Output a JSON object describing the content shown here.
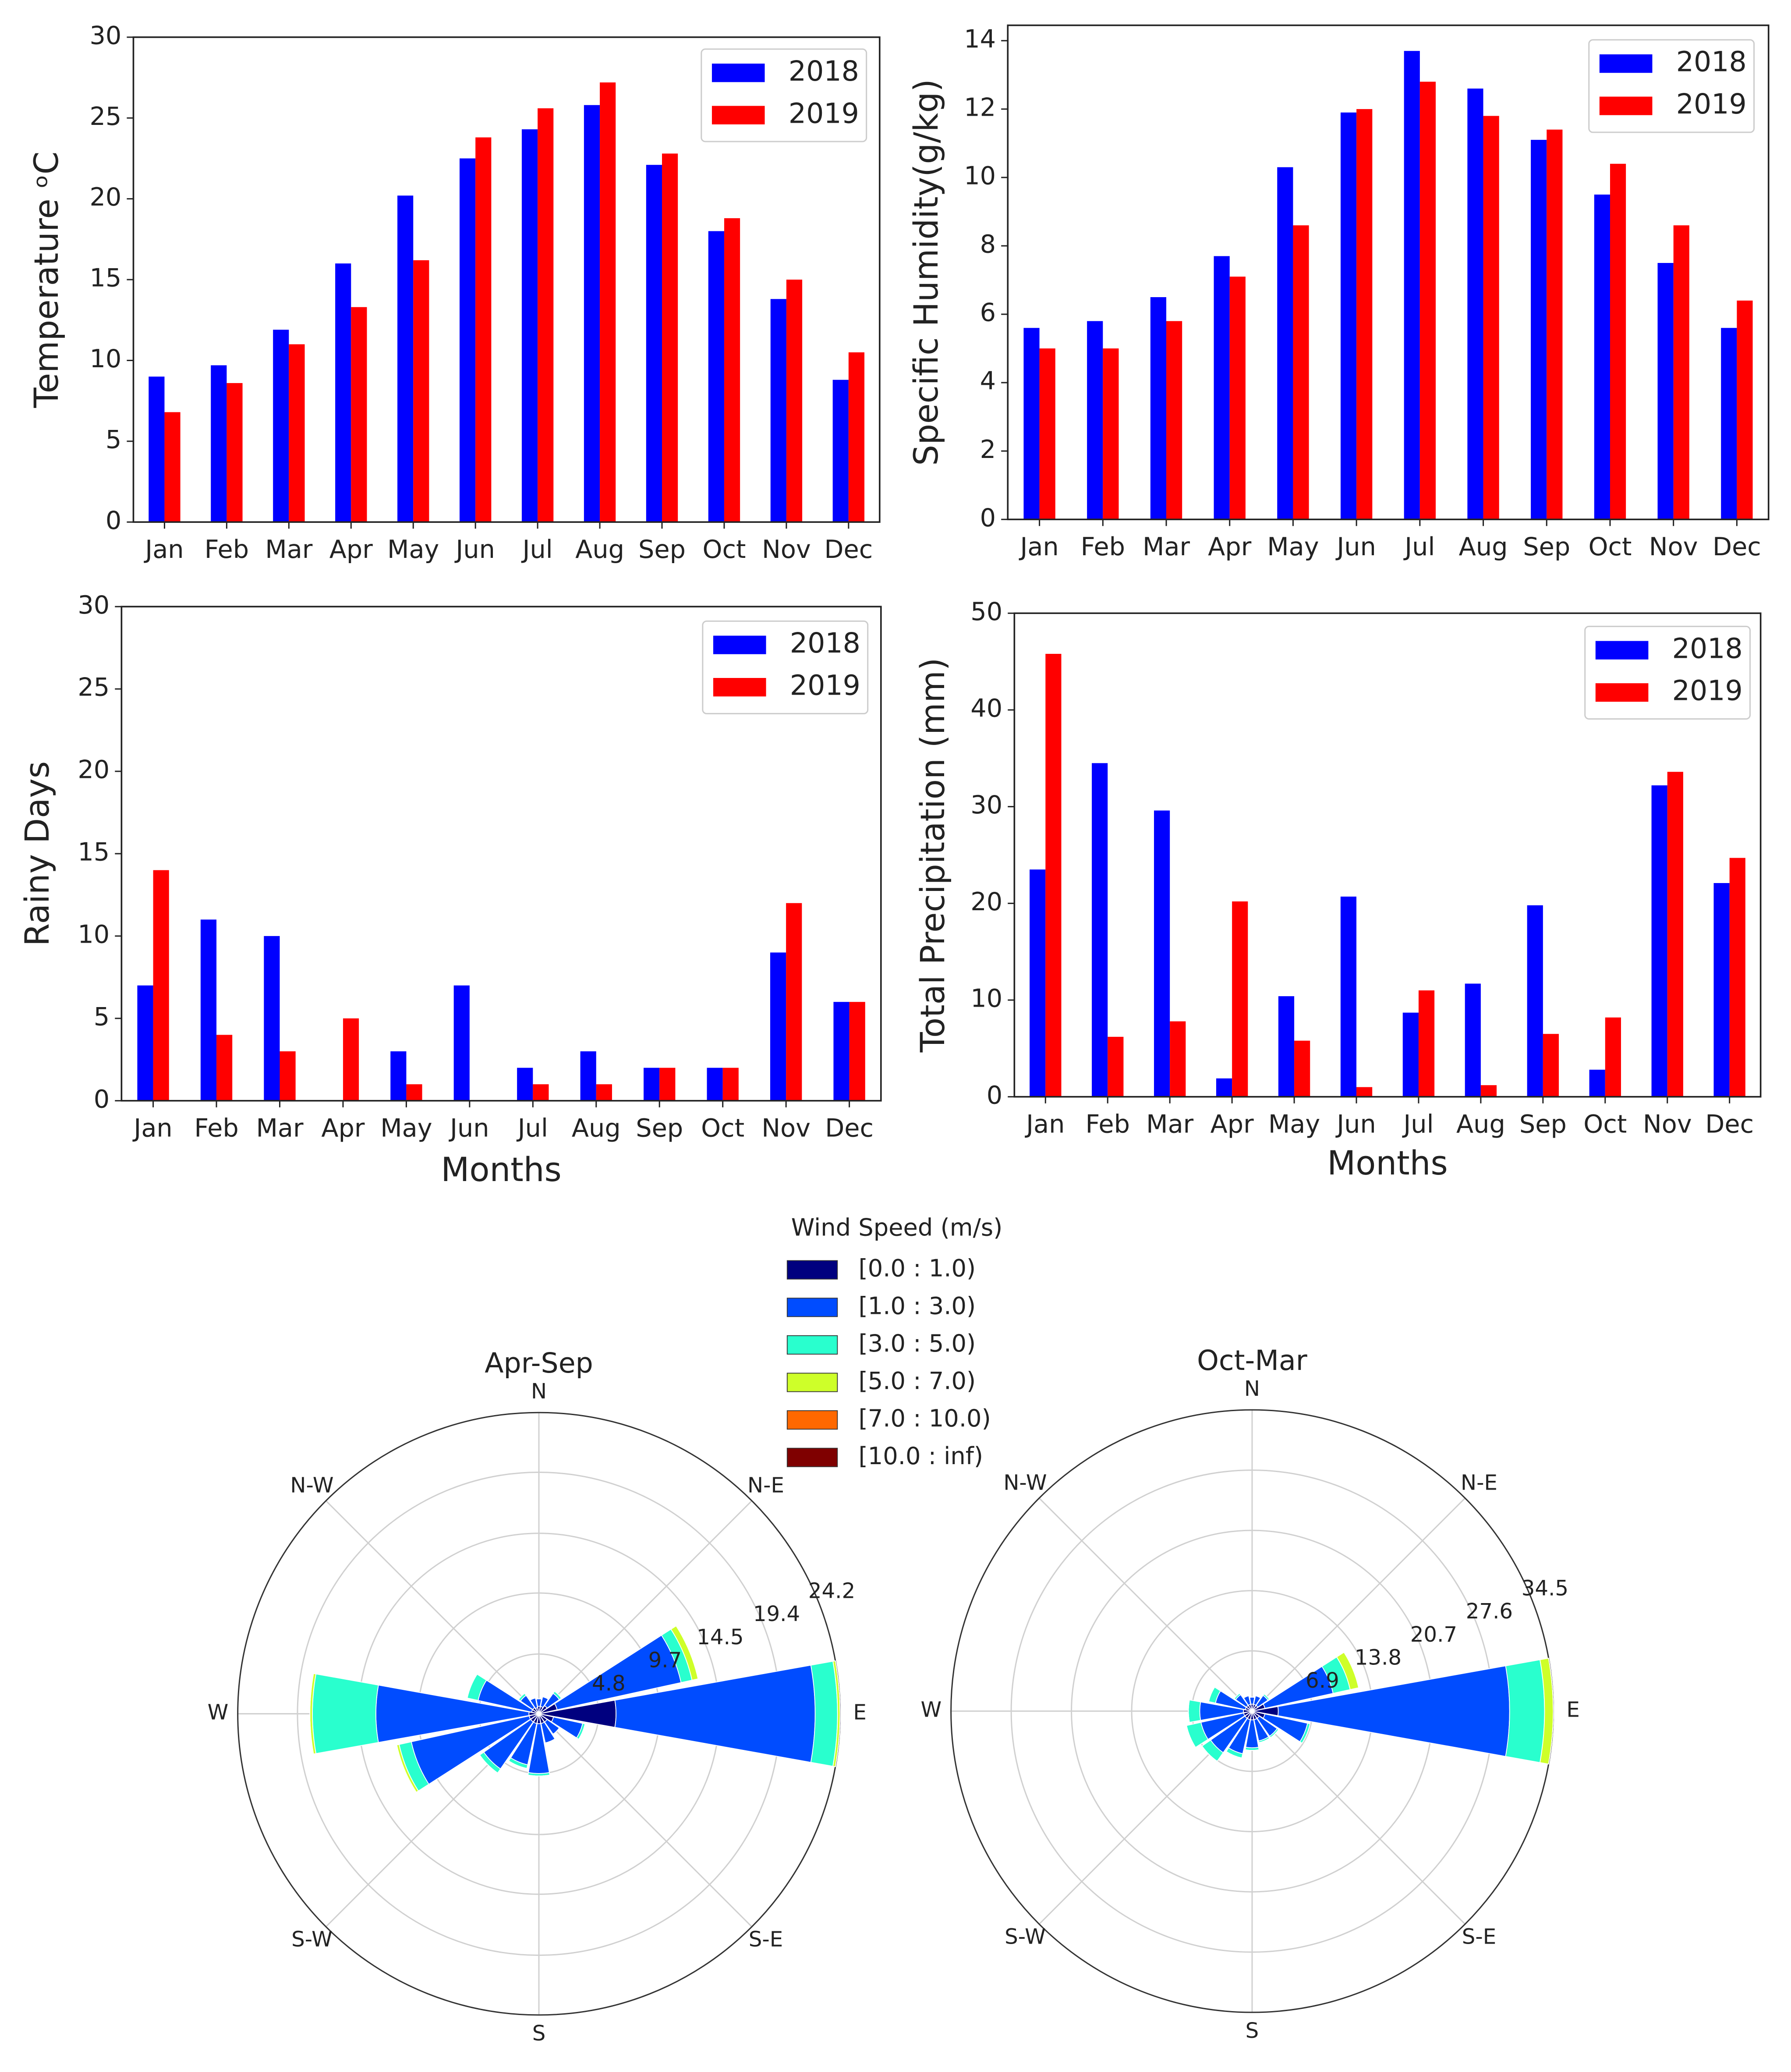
{
  "chart_data": [
    {
      "type": "bar",
      "ylabel": "Temperature ᵒC",
      "categories": [
        "Jan",
        "Feb",
        "Mar",
        "Apr",
        "May",
        "Jun",
        "Jul",
        "Aug",
        "Sep",
        "Oct",
        "Nov",
        "Dec"
      ],
      "series": [
        {
          "name": "2018",
          "color": "#0000ff",
          "values": [
            9.0,
            9.7,
            11.9,
            16.0,
            20.2,
            22.5,
            24.3,
            25.8,
            22.1,
            18.0,
            13.8,
            8.8
          ]
        },
        {
          "name": "2019",
          "color": "#ff0000",
          "values": [
            6.8,
            8.6,
            11.0,
            13.3,
            16.2,
            23.8,
            25.6,
            27.2,
            22.8,
            18.8,
            15.0,
            10.5
          ]
        }
      ],
      "ylim": [
        0,
        30
      ],
      "yticks": [
        0,
        5,
        10,
        15,
        20,
        25,
        30
      ],
      "legend": "upper right"
    },
    {
      "type": "bar",
      "ylabel": "Specific Humidity(g/kg)",
      "categories": [
        "Jan",
        "Feb",
        "Mar",
        "Apr",
        "May",
        "Jun",
        "Jul",
        "Aug",
        "Sep",
        "Oct",
        "Nov",
        "Dec"
      ],
      "series": [
        {
          "name": "2018",
          "color": "#0000ff",
          "values": [
            5.6,
            5.8,
            6.5,
            7.7,
            10.3,
            11.9,
            13.7,
            12.6,
            11.1,
            9.5,
            7.5,
            5.6
          ]
        },
        {
          "name": "2019",
          "color": "#ff0000",
          "values": [
            5.0,
            5.0,
            5.8,
            7.1,
            8.6,
            12.0,
            12.8,
            11.8,
            11.4,
            10.4,
            8.6,
            6.4
          ]
        }
      ],
      "ylim": [
        0,
        14.45
      ],
      "yticks": [
        0,
        2,
        4,
        6,
        8,
        10,
        12,
        14
      ],
      "legend": "upper right"
    },
    {
      "type": "bar",
      "ylabel": "Rainy Days",
      "xlabel": "Months",
      "categories": [
        "Jan",
        "Feb",
        "Mar",
        "Apr",
        "May",
        "Jun",
        "Jul",
        "Aug",
        "Sep",
        "Oct",
        "Nov",
        "Dec"
      ],
      "series": [
        {
          "name": "2018",
          "color": "#0000ff",
          "values": [
            7,
            11,
            10,
            0,
            3,
            7,
            2,
            3,
            2,
            2,
            9,
            6
          ]
        },
        {
          "name": "2019",
          "color": "#ff0000",
          "values": [
            14,
            4,
            3,
            5,
            1,
            0,
            1,
            1,
            2,
            2,
            12,
            6
          ]
        }
      ],
      "ylim": [
        0,
        30
      ],
      "yticks": [
        0,
        5,
        10,
        15,
        20,
        25,
        30
      ],
      "legend": "upper right"
    },
    {
      "type": "bar",
      "ylabel": "Total Precipitation (mm)",
      "xlabel": "Months",
      "categories": [
        "Jan",
        "Feb",
        "Mar",
        "Apr",
        "May",
        "Jun",
        "Jul",
        "Aug",
        "Sep",
        "Oct",
        "Nov",
        "Dec"
      ],
      "series": [
        {
          "name": "2018",
          "color": "#0000ff",
          "values": [
            23.5,
            34.5,
            29.6,
            1.9,
            10.4,
            20.7,
            8.7,
            11.7,
            19.8,
            2.8,
            32.2,
            22.1
          ]
        },
        {
          "name": "2019",
          "color": "#ff0000",
          "values": [
            45.8,
            6.2,
            7.8,
            20.2,
            5.8,
            1.0,
            11.0,
            1.2,
            6.5,
            8.2,
            33.6,
            24.7
          ]
        }
      ],
      "ylim": [
        0,
        50
      ],
      "yticks": [
        0,
        10,
        20,
        30,
        40,
        50
      ],
      "legend": "upper right"
    },
    {
      "type": "windrose",
      "title": "Apr-Sep",
      "legend_title": "Wind Speed (m/s)",
      "categories": [
        "N",
        null,
        "N-E",
        null,
        "E",
        null,
        "S-E",
        null,
        "S",
        null,
        "S-W",
        null,
        "W",
        null,
        "N-W",
        null
      ],
      "series": [
        {
          "name": "[0.0 : 1.0)",
          "color": "#00007f",
          "values": [
            0.6,
            0.6,
            0.8,
            1.5,
            6.2,
            1.2,
            0.8,
            0.8,
            0.8,
            0.8,
            0.8,
            0.8,
            0.8,
            0.6,
            0.6,
            0.5
          ]
        },
        {
          "name": "[1.0 : 3.0)",
          "color": "#004cff",
          "values": [
            0.6,
            0.8,
            1.2,
            10.2,
            16.0,
            2.4,
            1.2,
            1.6,
            4.0,
            3.4,
            4.6,
            9.7,
            12.3,
            4.4,
            1.2,
            0.8
          ]
        },
        {
          "name": "[3.0 : 5.0)",
          "color": "#29ffce",
          "values": [
            0,
            0,
            0.2,
            0.9,
            1.8,
            0.2,
            0,
            0,
            0.2,
            0.3,
            0.4,
            1.0,
            5.1,
            0.9,
            0.2,
            0
          ]
        },
        {
          "name": "[5.0 : 7.0)",
          "color": "#ceff29",
          "values": [
            0,
            0,
            0,
            0.5,
            0.2,
            0,
            0,
            0,
            0,
            0,
            0,
            0.2,
            0.2,
            0,
            0,
            0
          ]
        },
        {
          "name": "[7.0 : 10.0)",
          "color": "#ff6800",
          "values": [
            0,
            0,
            0,
            0,
            0,
            0,
            0,
            0,
            0,
            0,
            0,
            0,
            0,
            0,
            0,
            0
          ]
        },
        {
          "name": "[10.0 : inf)",
          "color": "#7f0000",
          "values": [
            0,
            0,
            0,
            0,
            0,
            0,
            0,
            0,
            0,
            0,
            0,
            0,
            0,
            0,
            0,
            0
          ]
        }
      ],
      "rlim": [
        0,
        24.2
      ],
      "rticks": [
        4.8,
        9.7,
        14.5,
        19.4,
        24.2
      ]
    },
    {
      "type": "windrose",
      "title": "Oct-Mar",
      "categories": [
        "N",
        null,
        "N-E",
        null,
        "E",
        null,
        "S-E",
        null,
        "S",
        null,
        "S-W",
        null,
        "W",
        null,
        "N-W",
        null
      ],
      "series": [
        {
          "color": "#00007f",
          "values": [
            0.8,
            0.8,
            0.8,
            1.5,
            3.0,
            1.5,
            1.0,
            1.0,
            1.0,
            1.0,
            1.0,
            1.0,
            1.0,
            0.8,
            0.8,
            0.8
          ]
        },
        {
          "color": "#004cff",
          "values": [
            0.8,
            1.0,
            1.4,
            8.0,
            26.5,
            5.0,
            2.5,
            2.5,
            3.2,
            4.0,
            4.8,
            5.0,
            5.0,
            3.5,
            1.5,
            1.0
          ]
        },
        {
          "color": "#29ffce",
          "values": [
            0,
            0,
            0.2,
            2.0,
            4.0,
            0.3,
            0.2,
            0.2,
            0.3,
            0.5,
            1.2,
            1.7,
            1.3,
            0.8,
            0.2,
            0
          ]
        },
        {
          "color": "#ceff29",
          "values": [
            0,
            0,
            0,
            1.0,
            1.0,
            0,
            0,
            0,
            0,
            0,
            0,
            0,
            0,
            0,
            0,
            0
          ]
        },
        {
          "color": "#ff6800",
          "values": [
            0,
            0,
            0,
            0,
            0,
            0,
            0,
            0,
            0,
            0,
            0,
            0,
            0,
            0,
            0,
            0
          ]
        },
        {
          "color": "#7f0000",
          "values": [
            0,
            0,
            0,
            0,
            0,
            0,
            0,
            0,
            0,
            0,
            0,
            0,
            0,
            0,
            0,
            0
          ]
        }
      ],
      "rlim": [
        0,
        34.5
      ],
      "rticks": [
        6.9,
        13.8,
        20.7,
        27.6,
        34.5
      ]
    }
  ]
}
